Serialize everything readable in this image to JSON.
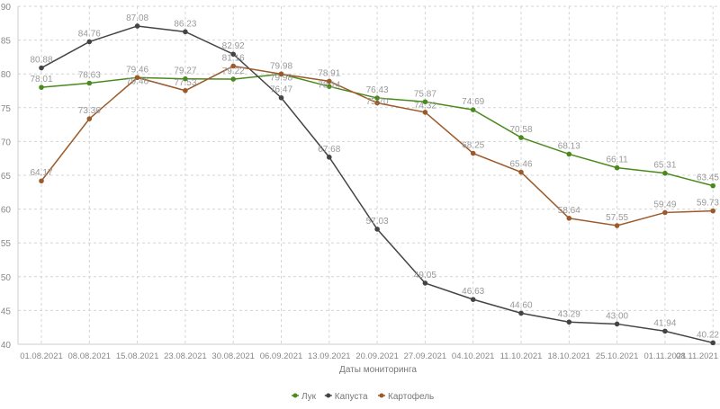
{
  "chart_data": {
    "type": "line",
    "title": "",
    "xlabel": "Даты мониторинга",
    "ylabel": "",
    "ylim": [
      40,
      90
    ],
    "yticks": [
      40,
      45,
      50,
      55,
      60,
      65,
      70,
      75,
      80,
      85,
      90
    ],
    "grid": true,
    "legend_position": "bottom",
    "categories": [
      "01.08.2021",
      "08.08.2021",
      "15.08.2021",
      "23.08.2021",
      "30.08.2021",
      "06.09.2021",
      "13.09.2021",
      "20.09.2021",
      "27.09.2021",
      "04.10.2021",
      "11.10.2021",
      "18.10.2021",
      "25.10.2021",
      "01.11.2021",
      "08.11.2021"
    ],
    "series": [
      {
        "name": "Лук",
        "color": "#4a8a1c",
        "values": [
          78.01,
          78.63,
          79.46,
          79.27,
          79.22,
          79.98,
          78.14,
          76.43,
          75.87,
          74.69,
          70.58,
          68.13,
          66.11,
          65.31,
          63.45
        ]
      },
      {
        "name": "Капуста",
        "color": "#444444",
        "values": [
          80.88,
          84.76,
          87.08,
          86.23,
          82.92,
          76.47,
          67.68,
          57.03,
          49.05,
          46.63,
          44.6,
          43.29,
          43.0,
          41.94,
          40.22
        ]
      },
      {
        "name": "Картофель",
        "color": "#9c5a2a",
        "values": [
          64.17,
          73.36,
          79.46,
          77.53,
          81.16,
          79.98,
          78.91,
          75.7,
          74.32,
          68.25,
          65.46,
          58.64,
          57.55,
          59.49,
          59.73
        ]
      }
    ]
  }
}
